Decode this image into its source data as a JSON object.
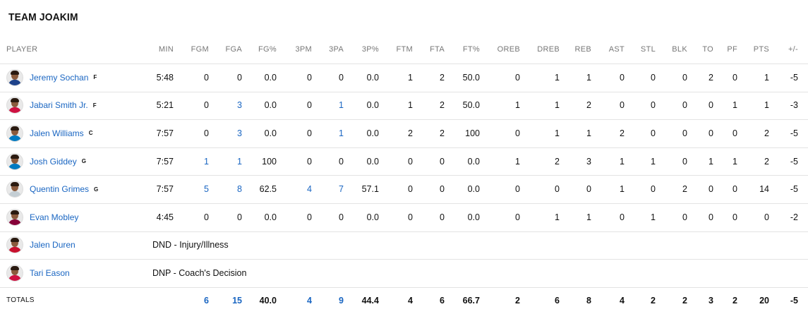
{
  "title": "TEAM JOAKIM",
  "headers": [
    "PLAYER",
    "MIN",
    "FGM",
    "FGA",
    "FG%",
    "3PM",
    "3PA",
    "3P%",
    "FTM",
    "FTA",
    "FT%",
    "OREB",
    "DREB",
    "REB",
    "AST",
    "STL",
    "BLK",
    "TO",
    "PF",
    "PTS",
    "+/-"
  ],
  "players": [
    {
      "name": "Jeremy Sochan",
      "pos": "F",
      "jersey": "#1d428a",
      "stats": [
        "5:48",
        "0",
        "0",
        "0.0",
        "0",
        "0",
        "0.0",
        "1",
        "2",
        "50.0",
        "0",
        "1",
        "1",
        "0",
        "0",
        "0",
        "2",
        "0",
        "1",
        "-5"
      ]
    },
    {
      "name": "Jabari Smith Jr.",
      "pos": "F",
      "jersey": "#ce1141",
      "stats": [
        "5:21",
        "0",
        "3",
        "0.0",
        "0",
        "1",
        "0.0",
        "1",
        "2",
        "50.0",
        "1",
        "1",
        "2",
        "0",
        "0",
        "0",
        "0",
        "1",
        "1",
        "-3"
      ]
    },
    {
      "name": "Jalen Williams",
      "pos": "C",
      "jersey": "#007ac1",
      "stats": [
        "7:57",
        "0",
        "3",
        "0.0",
        "0",
        "1",
        "0.0",
        "2",
        "2",
        "100",
        "0",
        "1",
        "1",
        "2",
        "0",
        "0",
        "0",
        "0",
        "2",
        "-5"
      ]
    },
    {
      "name": "Josh Giddey",
      "pos": "G",
      "jersey": "#007ac1",
      "stats": [
        "7:57",
        "1",
        "1",
        "100",
        "0",
        "0",
        "0.0",
        "0",
        "0",
        "0.0",
        "1",
        "2",
        "3",
        "1",
        "1",
        "0",
        "1",
        "1",
        "2",
        "-5"
      ]
    },
    {
      "name": "Quentin Grimes",
      "pos": "G",
      "jersey": "#c4ced4",
      "stats": [
        "7:57",
        "5",
        "8",
        "62.5",
        "4",
        "7",
        "57.1",
        "0",
        "0",
        "0.0",
        "0",
        "0",
        "0",
        "1",
        "0",
        "2",
        "0",
        "0",
        "14",
        "-5"
      ]
    },
    {
      "name": "Evan Mobley",
      "pos": "",
      "jersey": "#860038",
      "stats": [
        "4:45",
        "0",
        "0",
        "0.0",
        "0",
        "0",
        "0.0",
        "0",
        "0",
        "0.0",
        "0",
        "1",
        "1",
        "0",
        "1",
        "0",
        "0",
        "0",
        "0",
        "-2"
      ]
    },
    {
      "name": "Jalen Duren",
      "pos": "",
      "jersey": "#c8102e",
      "dnp": "DND - Injury/Illness"
    },
    {
      "name": "Tari Eason",
      "pos": "",
      "jersey": "#ce1141",
      "dnp": "DNP - Coach's Decision"
    }
  ],
  "totals": {
    "label": "TOTALS",
    "stats": [
      "",
      "6",
      "15",
      "40.0",
      "4",
      "9",
      "44.4",
      "4",
      "6",
      "66.7",
      "2",
      "6",
      "8",
      "4",
      "2",
      "2",
      "3",
      "2",
      "20",
      "-5"
    ]
  },
  "link_color": "#1a66c2"
}
